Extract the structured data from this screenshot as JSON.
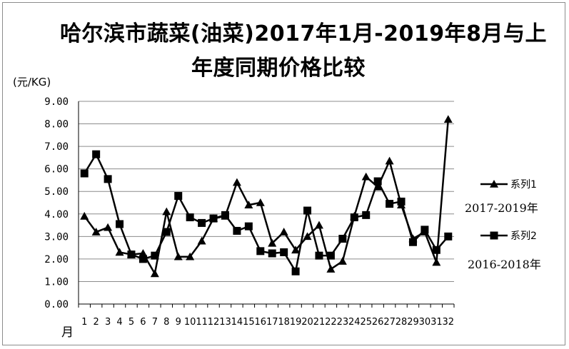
{
  "chart_data": {
    "type": "line",
    "title": "哈尔滨市蔬菜(油菜)2017年1月-2019年8月与上",
    "title_line2": "年度同期价格比较",
    "ylabel": "(元/KG)",
    "xlabel": "月",
    "ylim": [
      0,
      9
    ],
    "yticks": [
      "0.00",
      "1.00",
      "2.00",
      "3.00",
      "4.00",
      "5.00",
      "6.00",
      "7.00",
      "8.00",
      "9.00"
    ],
    "categories": [
      "1",
      "2",
      "3",
      "4",
      "5",
      "6",
      "7",
      "8",
      "9",
      "10",
      "11",
      "12",
      "13",
      "14",
      "15",
      "16",
      "17",
      "18",
      "19",
      "20",
      "21",
      "22",
      "23",
      "24",
      "25",
      "26",
      "27",
      "28",
      "29",
      "30",
      "31",
      "32"
    ],
    "grid": true,
    "legend_position": "right",
    "series": [
      {
        "name": "系列1",
        "marker": "triangle",
        "values": [
          3.9,
          3.2,
          3.4,
          2.3,
          2.2,
          2.25,
          1.35,
          4.1,
          2.1,
          2.1,
          2.8,
          3.8,
          3.9,
          5.4,
          4.4,
          4.5,
          2.7,
          3.2,
          2.4,
          3.0,
          3.5,
          1.55,
          1.9,
          3.9,
          5.65,
          5.2,
          6.35,
          4.4,
          2.9,
          3.2,
          1.85,
          8.2
        ]
      },
      {
        "name": "系列2",
        "marker": "square",
        "values": [
          5.8,
          6.65,
          5.55,
          3.55,
          2.2,
          2.0,
          2.15,
          3.2,
          4.8,
          3.85,
          3.6,
          3.8,
          3.95,
          3.25,
          3.45,
          2.35,
          2.25,
          2.3,
          1.45,
          4.15,
          2.15,
          2.15,
          2.9,
          3.85,
          3.95,
          5.45,
          4.45,
          4.55,
          2.75,
          3.3,
          2.4,
          3.0
        ]
      }
    ],
    "annotations": [
      "2017-2019年",
      "2016-2018年"
    ]
  },
  "colors": {
    "line": "#000000",
    "grid": "#8c8c8c",
    "background": "#ffffff"
  }
}
